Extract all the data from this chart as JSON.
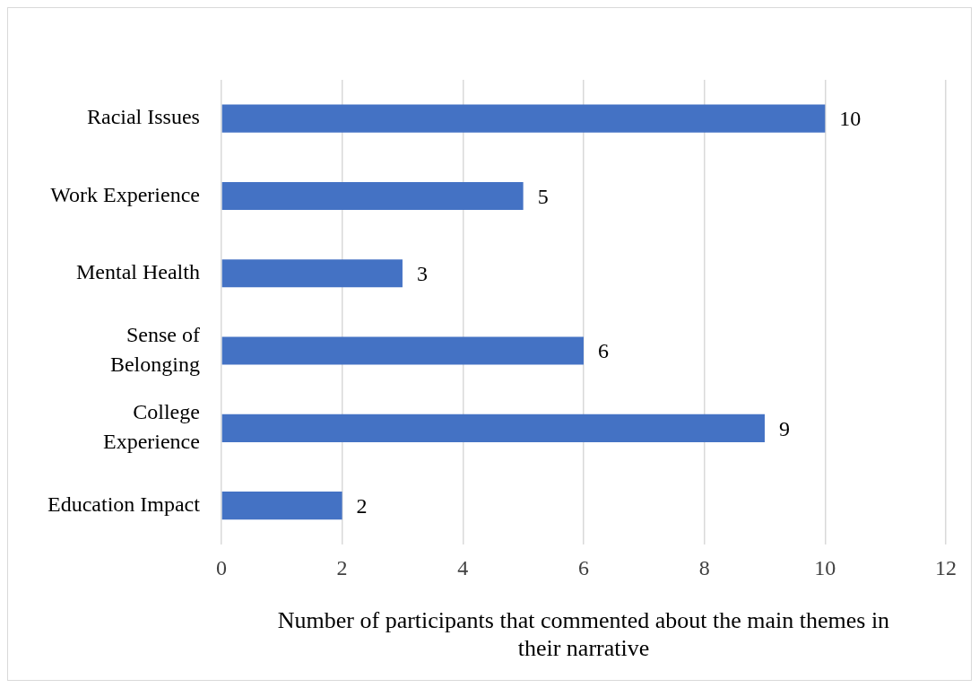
{
  "chart_data": {
    "type": "bar",
    "orientation": "horizontal",
    "categories": [
      "Racial Issues",
      "Work Experience",
      "Mental Health",
      "Sense of Belonging",
      "College Experience",
      "Education Impact"
    ],
    "values": [
      10,
      5,
      3,
      6,
      9,
      2
    ],
    "color": "#4472c4",
    "xlim": [
      0,
      12
    ],
    "xticks": [
      0,
      2,
      4,
      6,
      8,
      10,
      12
    ],
    "grid": "x",
    "data_labels": true,
    "legend": false,
    "xlabel": "Number of participants that commented about the main themes in their narrative"
  }
}
